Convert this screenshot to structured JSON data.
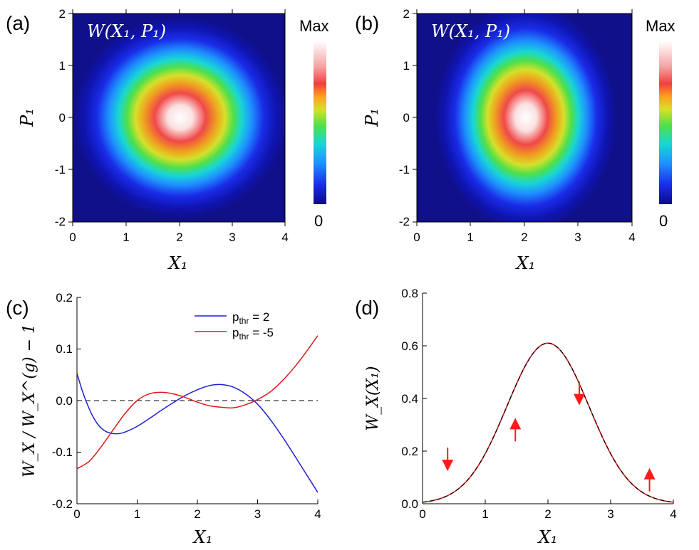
{
  "chart_data": [
    {
      "type": "heatmap",
      "panel_label": "(a)",
      "title": "W(X₁, P₁)",
      "xlabel": "X₁",
      "ylabel": "P₁",
      "xlim": [
        0,
        4
      ],
      "ylim": [
        -2,
        2
      ],
      "xticks": [
        "0",
        "1",
        "2",
        "3",
        "4"
      ],
      "yticks": [
        "2",
        "1",
        "0",
        "-1",
        "-2"
      ],
      "colorbar": {
        "max_label": "Max",
        "min_label": "0"
      },
      "center": [
        2.0,
        0.0
      ],
      "shape": "circular"
    },
    {
      "type": "heatmap",
      "panel_label": "(b)",
      "title": "W(X₁, P₁)",
      "xlabel": "X₁",
      "ylabel": "P₁",
      "xlim": [
        0,
        4
      ],
      "ylim": [
        -2,
        2
      ],
      "xticks": [
        "0",
        "1",
        "2",
        "3",
        "4"
      ],
      "yticks": [
        "2",
        "1",
        "0",
        "-1",
        "-2"
      ],
      "colorbar": {
        "max_label": "Max",
        "min_label": "0"
      },
      "center": [
        2.0,
        0.0
      ],
      "shape": "elongated along P₁"
    },
    {
      "type": "line",
      "panel_label": "(c)",
      "xlabel": "X₁",
      "ylabel": "W_X / W_X^(g) − 1",
      "xlim": [
        0,
        4
      ],
      "ylim": [
        -0.2,
        0.2
      ],
      "xticks": [
        "0",
        "1",
        "2",
        "3",
        "4"
      ],
      "yticks": [
        "0.2",
        "0.1",
        "0.0",
        "-0.1",
        "-0.2"
      ],
      "reference_line": 0.0,
      "legend": [
        {
          "label": "p",
          "sub": "thr",
          "rest": " = 2",
          "color": "#1f1fd8"
        },
        {
          "label": "p",
          "sub": "thr",
          "rest": " = -5",
          "color": "#e01818"
        }
      ],
      "series": [
        {
          "name": "p_thr = 2",
          "color": "#1f1fd8",
          "x": [
            0,
            0.1,
            0.2,
            0.3,
            0.4,
            0.5,
            0.6,
            0.7,
            0.8,
            1.0,
            1.2,
            1.4,
            1.6,
            1.8,
            2.0,
            2.2,
            2.4,
            2.6,
            2.8,
            3.0,
            3.2,
            3.4,
            3.6,
            3.8,
            4.0
          ],
          "y": [
            0.053,
            0.015,
            -0.015,
            -0.038,
            -0.053,
            -0.061,
            -0.064,
            -0.064,
            -0.061,
            -0.05,
            -0.035,
            -0.019,
            -0.004,
            0.01,
            0.021,
            0.029,
            0.031,
            0.026,
            0.013,
            -0.007,
            -0.035,
            -0.068,
            -0.104,
            -0.141,
            -0.178
          ]
        },
        {
          "name": "p_thr = -5",
          "color": "#e01818",
          "x": [
            0,
            0.2,
            0.4,
            0.6,
            0.8,
            1.0,
            1.2,
            1.4,
            1.6,
            1.8,
            2.0,
            2.2,
            2.4,
            2.6,
            2.8,
            3.0,
            3.2,
            3.4,
            3.6,
            3.8,
            4.0
          ],
          "y": [
            -0.132,
            -0.118,
            -0.09,
            -0.057,
            -0.025,
            0.0,
            0.013,
            0.016,
            0.013,
            0.006,
            -0.003,
            -0.01,
            -0.013,
            -0.014,
            -0.008,
            0.002,
            0.016,
            0.037,
            0.063,
            0.093,
            0.126
          ]
        }
      ]
    },
    {
      "type": "line",
      "panel_label": "(d)",
      "xlabel": "X₁",
      "ylabel": "W_X(X₁)",
      "xlim": [
        0,
        4
      ],
      "ylim": [
        0,
        0.8
      ],
      "xticks": [
        "0",
        "1",
        "2",
        "3",
        "4"
      ],
      "yticks": [
        "0.8",
        "0.6",
        "0.4",
        "0.2",
        "0.0"
      ],
      "series": [
        {
          "name": "W_X (red)",
          "color": "#e01818",
          "gaussian": {
            "amp": 0.61,
            "mean": 2.0,
            "sigma": 0.655
          }
        },
        {
          "name": "W_X (black dashed)",
          "color": "#000000",
          "dashed": true,
          "gaussian": {
            "amp": 0.61,
            "mean": 2.0,
            "sigma": 0.655
          }
        }
      ],
      "annotations": [
        {
          "type": "arrow-down",
          "x": 0.4,
          "y": 0.17
        },
        {
          "type": "arrow-up",
          "x": 1.48,
          "y": 0.28
        },
        {
          "type": "arrow-down",
          "x": 2.5,
          "y": 0.42
        },
        {
          "type": "arrow-up",
          "x": 3.62,
          "y": 0.09
        }
      ]
    }
  ]
}
